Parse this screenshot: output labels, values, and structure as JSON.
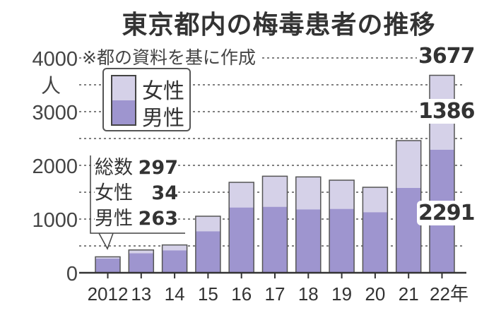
{
  "chart_data": {
    "type": "bar",
    "stacked": true,
    "title": "東京都内の梅毒患者の推移",
    "subtitle": "※都の資料を基に作成",
    "ylabel": "人",
    "xlabel": "",
    "ylim": [
      0,
      4000
    ],
    "yticks": [
      "0",
      "1000",
      "2000",
      "3000",
      "4000"
    ],
    "categories": [
      "2012",
      "13",
      "14",
      "15",
      "16",
      "17",
      "18",
      "19",
      "20",
      "21",
      "22年"
    ],
    "series": [
      {
        "name": "男性",
        "values": [
          263,
          362,
          417,
          772,
          1215,
          1228,
          1180,
          1189,
          1127,
          1579,
          2291
        ]
      },
      {
        "name": "女性",
        "values": [
          34,
          63,
          101,
          281,
          469,
          570,
          605,
          535,
          465,
          882,
          1386
        ]
      }
    ],
    "totals": [
      297,
      425,
      518,
      1053,
      1684,
      1798,
      1785,
      1724,
      1592,
      2461,
      3677
    ],
    "legend": {
      "placement": "top-left",
      "items": [
        "女性",
        "男性"
      ]
    },
    "grid": "dotted",
    "annotations": {
      "callout_2012": {
        "total_label": "総数",
        "total": "297",
        "female_label": "女性",
        "female": "34",
        "male_label": "男性",
        "male": "263"
      },
      "labels_2022": {
        "total": "3677",
        "female": "1386",
        "male": "2291"
      }
    },
    "colors": {
      "male": "#9e95cf",
      "female": "#d5d1e8",
      "outline": "#555555"
    }
  }
}
